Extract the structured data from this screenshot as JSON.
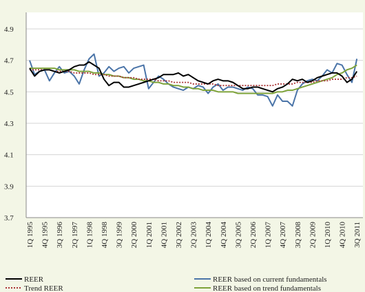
{
  "chart_data": {
    "type": "line",
    "categories": [
      "1Q 1995",
      null,
      null,
      "4Q 1995",
      null,
      null,
      "3Q 1996",
      null,
      null,
      "2Q 1997",
      null,
      null,
      "1Q 1998",
      null,
      null,
      "4Q 1998",
      null,
      null,
      "3Q 1999",
      null,
      null,
      "2Q 2000",
      null,
      null,
      "1Q 2001",
      null,
      null,
      "4Q 2001",
      null,
      null,
      "3Q 2002",
      null,
      null,
      "2Q 2003",
      null,
      null,
      "1Q 2004",
      null,
      null,
      "4Q 2004",
      null,
      null,
      "3Q 2005",
      null,
      null,
      "2Q 2006",
      null,
      null,
      "1Q 2007",
      null,
      null,
      "4Q 2007",
      null,
      null,
      "3Q 2008",
      null,
      null,
      "2Q 2009",
      null,
      null,
      "1Q 2010",
      null,
      null,
      "4Q 2010",
      null,
      null,
      "3Q 2011"
    ],
    "series": [
      {
        "name": "REER",
        "color": "#000000",
        "values": [
          4.65,
          4.6,
          4.63,
          4.64,
          4.64,
          4.63,
          4.62,
          4.63,
          4.64,
          4.66,
          4.67,
          4.67,
          4.69,
          4.67,
          4.65,
          4.58,
          4.54,
          4.56,
          4.56,
          4.53,
          4.53,
          4.54,
          4.55,
          4.56,
          4.57,
          4.58,
          4.59,
          4.61,
          4.61,
          4.61,
          4.62,
          4.6,
          4.61,
          4.59,
          4.57,
          4.56,
          4.55,
          4.57,
          4.58,
          4.57,
          4.57,
          4.56,
          4.54,
          4.52,
          4.52,
          4.53,
          4.53,
          4.52,
          4.51,
          4.5,
          4.52,
          4.53,
          4.55,
          4.58,
          4.57,
          4.58,
          4.56,
          4.57,
          4.59,
          4.6,
          4.61,
          4.62,
          4.62,
          4.6,
          4.56,
          4.58,
          4.63
        ]
      },
      {
        "name": "REER based on current fundamentals",
        "color": "#4a74a8",
        "values": [
          4.7,
          4.61,
          4.63,
          4.64,
          4.57,
          4.62,
          4.66,
          4.62,
          4.63,
          4.6,
          4.55,
          4.64,
          4.71,
          4.74,
          4.6,
          4.62,
          4.66,
          4.63,
          4.65,
          4.66,
          4.62,
          4.65,
          4.66,
          4.67,
          4.52,
          4.56,
          4.6,
          4.58,
          4.55,
          4.53,
          4.52,
          4.51,
          4.53,
          4.52,
          4.54,
          4.53,
          4.49,
          4.53,
          4.55,
          4.51,
          4.53,
          4.53,
          4.52,
          4.51,
          4.53,
          4.52,
          4.48,
          4.48,
          4.47,
          4.41,
          4.48,
          4.44,
          4.44,
          4.41,
          4.51,
          4.55,
          4.57,
          4.58,
          4.57,
          4.6,
          4.64,
          4.62,
          4.68,
          4.67,
          4.61,
          4.56,
          4.71
        ]
      },
      {
        "name": "Trend REER",
        "color": "#a83232",
        "dash": "dotted",
        "values": [
          4.64,
          4.64,
          4.64,
          4.64,
          4.64,
          4.63,
          4.63,
          4.63,
          4.63,
          4.62,
          4.62,
          4.62,
          4.62,
          4.61,
          4.61,
          4.61,
          4.6,
          4.6,
          4.6,
          4.59,
          4.59,
          4.59,
          4.58,
          4.58,
          4.58,
          4.58,
          4.57,
          4.57,
          4.57,
          4.56,
          4.56,
          4.56,
          4.56,
          4.55,
          4.55,
          4.55,
          4.55,
          4.55,
          4.54,
          4.54,
          4.54,
          4.54,
          4.54,
          4.54,
          4.54,
          4.54,
          4.54,
          4.54,
          4.54,
          4.54,
          4.55,
          4.55,
          4.55,
          4.55,
          4.56,
          4.56,
          4.56,
          4.56,
          4.57,
          4.57,
          4.57,
          4.58,
          4.58,
          4.58,
          4.59,
          4.59,
          4.6
        ]
      },
      {
        "name": "REER based on trend fundamentals",
        "color": "#7ea33a",
        "values": [
          4.65,
          4.65,
          4.65,
          4.65,
          4.65,
          4.65,
          4.64,
          4.64,
          4.64,
          4.64,
          4.63,
          4.63,
          4.63,
          4.62,
          4.62,
          4.61,
          4.61,
          4.6,
          4.6,
          4.59,
          4.59,
          4.58,
          4.58,
          4.57,
          4.57,
          4.56,
          4.56,
          4.55,
          4.55,
          4.54,
          4.54,
          4.53,
          4.53,
          4.52,
          4.52,
          4.51,
          4.51,
          4.51,
          4.5,
          4.5,
          4.5,
          4.5,
          4.49,
          4.49,
          4.49,
          4.49,
          4.49,
          4.49,
          4.49,
          4.49,
          4.5,
          4.5,
          4.51,
          4.51,
          4.52,
          4.53,
          4.54,
          4.55,
          4.56,
          4.57,
          4.58,
          4.59,
          4.61,
          4.62,
          4.64,
          4.65,
          4.67
        ]
      }
    ],
    "ylim": [
      3.7,
      4.9
    ],
    "yticks": [
      3.7,
      3.9,
      4.1,
      4.3,
      4.5,
      4.7,
      4.9
    ],
    "grid": true
  }
}
